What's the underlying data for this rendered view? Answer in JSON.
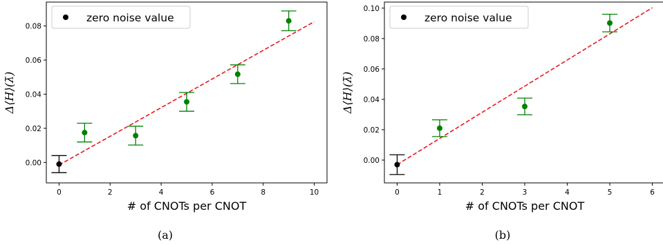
{
  "chart_data": [
    {
      "type": "scatter",
      "caption": "(a)",
      "xlabel": "# of CNOTs per CNOT",
      "ylabel": "Δ⟨H⟩(λ̄)",
      "xlim": [
        -0.5,
        10.5
      ],
      "ylim": [
        -0.012,
        0.094
      ],
      "xticks": [
        0,
        2,
        4,
        6,
        8,
        10
      ],
      "xtick_labels": [
        "0",
        "2",
        "4",
        "6",
        "8",
        "10"
      ],
      "yticks": [
        0.0,
        0.02,
        0.04,
        0.06,
        0.08
      ],
      "ytick_labels": [
        "0.00",
        "0.02",
        "0.04",
        "0.06",
        "0.08"
      ],
      "legend": {
        "label": "zero noise value",
        "position": "top-left"
      },
      "zero_noise": {
        "x": 0,
        "y": -0.001,
        "err": 0.005,
        "color": "#000000"
      },
      "points": {
        "x": [
          1,
          3,
          5,
          7,
          9
        ],
        "y": [
          0.0175,
          0.0157,
          0.0355,
          0.0517,
          0.083
        ],
        "err": [
          0.0055,
          0.0055,
          0.0055,
          0.0055,
          0.0058
        ],
        "color": "#008000"
      },
      "fit": {
        "x": [
          0,
          10
        ],
        "y": [
          -0.0015,
          0.0825
        ],
        "color": "#e41a1c",
        "style": "dashed"
      },
      "grid": false
    },
    {
      "type": "scatter",
      "caption": "(b)",
      "xlabel": "# of CNOTs per CNOT",
      "ylabel": "Δ⟨H⟩(λ̄)",
      "xlim": [
        -0.3,
        6.3
      ],
      "ylim": [
        -0.015,
        0.104
      ],
      "xticks": [
        0,
        1,
        2,
        3,
        4,
        5,
        6
      ],
      "xtick_labels": [
        "0",
        "1",
        "2",
        "3",
        "4",
        "5",
        "6"
      ],
      "yticks": [
        0.0,
        0.02,
        0.04,
        0.06,
        0.08,
        0.1
      ],
      "ytick_labels": [
        "0.00",
        "0.02",
        "0.04",
        "0.06",
        "0.08",
        "0.10"
      ],
      "legend": {
        "label": "zero noise value",
        "position": "top-left"
      },
      "zero_noise": {
        "x": 0,
        "y": -0.003,
        "err": 0.0065,
        "color": "#000000"
      },
      "points": {
        "x": [
          1,
          3,
          5
        ],
        "y": [
          0.021,
          0.0353,
          0.0902
        ],
        "err": [
          0.0055,
          0.0055,
          0.0058
        ],
        "color": "#008000"
      },
      "fit": {
        "x": [
          0,
          6
        ],
        "y": [
          -0.003,
          0.1003
        ],
        "color": "#e41a1c",
        "style": "dashed"
      },
      "grid": false
    }
  ]
}
